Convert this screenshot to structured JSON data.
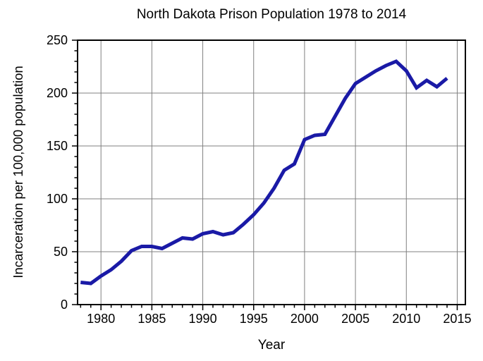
{
  "figure": {
    "title": "North Dakota Prison Population 1978 to 2014",
    "xlabel": "Year",
    "ylabel": "Incarceration per 100,000 population"
  },
  "chart_data": {
    "type": "line",
    "title": "North Dakota Prison Population 1978 to 2014",
    "xlabel": "Year",
    "ylabel": "Incarceration per 100,000 population",
    "series": [
      {
        "name": "Incarceration per 100,000 population",
        "x": [
          1978,
          1979,
          1980,
          1981,
          1982,
          1983,
          1984,
          1985,
          1986,
          1987,
          1988,
          1989,
          1990,
          1991,
          1992,
          1993,
          1994,
          1995,
          1996,
          1997,
          1998,
          1999,
          2000,
          2001,
          2002,
          2003,
          2004,
          2005,
          2006,
          2007,
          2008,
          2009,
          2010,
          2011,
          2012,
          2013,
          2014
        ],
        "values": [
          21,
          20,
          27,
          33,
          41,
          51,
          55,
          55,
          53,
          58,
          63,
          62,
          67,
          69,
          66,
          68,
          76,
          85,
          96,
          110,
          127,
          133,
          156,
          160,
          161,
          178,
          195,
          209,
          215,
          221,
          226,
          230,
          221,
          205,
          212,
          206,
          214
        ]
      }
    ],
    "xlim": [
      1977.7,
      2015.8
    ],
    "ylim": [
      0,
      250
    ],
    "x_major_ticks": [
      1980,
      1985,
      1990,
      1995,
      2000,
      2005,
      2010,
      2015
    ],
    "x_minor_step": 1,
    "y_major_ticks": [
      0,
      50,
      100,
      150,
      200,
      250
    ],
    "y_minor_step": 10,
    "grid": true,
    "legend_position": "none",
    "line_color": "#1a1aa6",
    "grid_color": "#808080",
    "frame_color": "#000000",
    "background_color": "#ffffff"
  }
}
